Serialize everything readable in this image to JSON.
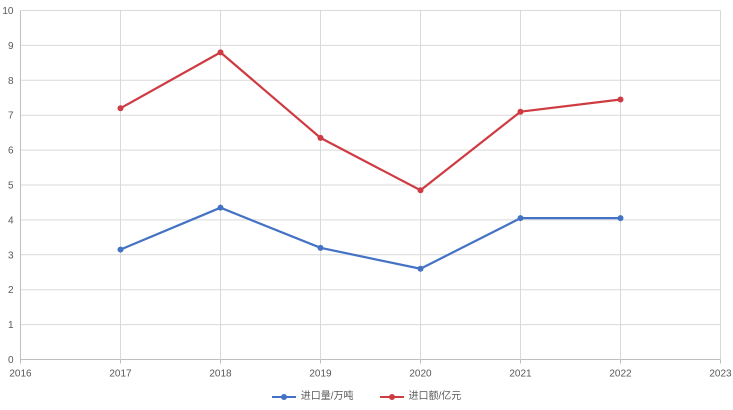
{
  "chart_data": {
    "type": "line",
    "title": "",
    "xlabel": "",
    "ylabel": "",
    "x_axis_ticks": [
      "2016",
      "2017",
      "2018",
      "2019",
      "2020",
      "2021",
      "2022",
      "2023"
    ],
    "x": [
      2017,
      2018,
      2019,
      2020,
      2021,
      2022
    ],
    "series": [
      {
        "name": "进口量/万吨",
        "color": "#4472C4",
        "values": [
          3.15,
          4.35,
          3.2,
          2.6,
          4.05,
          4.05
        ]
      },
      {
        "name": "进口额/亿元",
        "color": "#CE3B42",
        "values": [
          7.2,
          8.8,
          6.35,
          4.85,
          7.1,
          7.45
        ]
      }
    ],
    "ylim": [
      0,
      10
    ],
    "ytick_step": 1,
    "grid": true,
    "legend_position": "bottom"
  },
  "colors": {
    "gridline": "#D9D9D9",
    "axis_line": "#BFBFBF",
    "tick_label": "#595959",
    "background": "#FFFFFF",
    "series_blue": "#4472C4",
    "series_red": "#CE3B42"
  }
}
